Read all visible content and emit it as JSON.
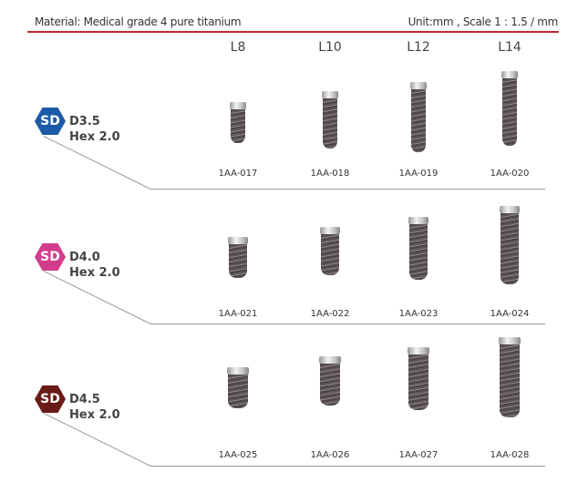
{
  "header": {
    "material": "Material: Medical grade 4 pure titanium",
    "unit": "Unit:mm , Scale 1 : 1.5 / mm"
  },
  "columns": [
    "L8",
    "L10",
    "L12",
    "L14"
  ],
  "rows": [
    {
      "badge": "SD",
      "color": "#1b5aa6",
      "diameter": "D3.5",
      "hex": "Hex 2.0",
      "codes": [
        "1AA-017",
        "1AA-018",
        "1AA-019",
        "1AA-020"
      ]
    },
    {
      "badge": "SD",
      "color": "#d23c8c",
      "diameter": "D4.0",
      "hex": "Hex 2.0",
      "codes": [
        "1AA-021",
        "1AA-022",
        "1AA-023",
        "1AA-024"
      ]
    },
    {
      "badge": "SD",
      "color": "#6a1b17",
      "diameter": "D4.5",
      "hex": "Hex 2.0",
      "codes": [
        "1AA-025",
        "1AA-026",
        "1AA-027",
        "1AA-028"
      ]
    }
  ]
}
